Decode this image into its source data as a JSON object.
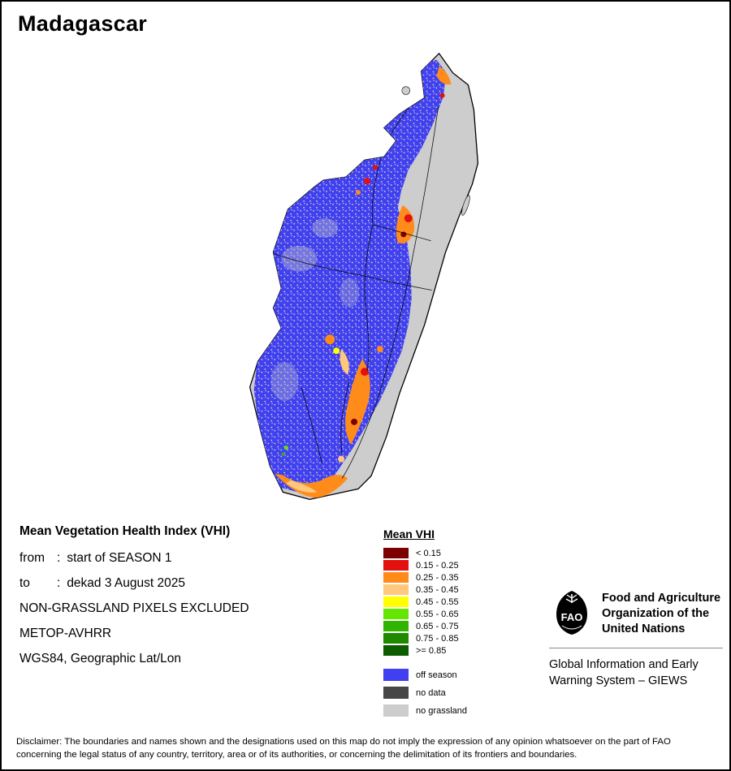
{
  "title": "Madagascar",
  "info": {
    "heading": "Mean Vegetation Health Index (VHI)",
    "rows": [
      {
        "label": "from",
        "colon": ":",
        "value": "start of SEASON 1"
      },
      {
        "label": "to",
        "colon": ":",
        "value": "dekad 3 August 2025"
      }
    ],
    "lines": [
      "NON-GRASSLAND PIXELS EXCLUDED",
      "METOP-AVHRR",
      "WGS84, Geographic Lat/Lon"
    ]
  },
  "legend": {
    "title": "Mean VHI",
    "classes": [
      {
        "key": "c_lt_015",
        "label": "< 0.15",
        "color": "#7d0000"
      },
      {
        "key": "c_015_025",
        "label": "0.15 - 0.25",
        "color": "#e31010"
      },
      {
        "key": "c_025_035",
        "label": "0.25 - 0.35",
        "color": "#ff8c1a"
      },
      {
        "key": "c_035_045",
        "label": "0.35 - 0.45",
        "color": "#ffc87d"
      },
      {
        "key": "c_045_055",
        "label": "0.45 - 0.55",
        "color": "#ffff00"
      },
      {
        "key": "c_055_065",
        "label": "0.55 - 0.65",
        "color": "#63e600"
      },
      {
        "key": "c_065_075",
        "label": "0.65 - 0.75",
        "color": "#2fb500"
      },
      {
        "key": "c_075_085",
        "label": "0.75 - 0.85",
        "color": "#1f8a00"
      },
      {
        "key": "c_ge_085",
        "label": ">= 0.85",
        "color": "#0e5c00"
      }
    ],
    "extras": [
      {
        "key": "off_season",
        "label": "off season",
        "color": "#4040f0"
      },
      {
        "key": "no_data",
        "label": "no data",
        "color": "#474747"
      },
      {
        "key": "no_grassland",
        "label": "no grassland",
        "color": "#cdcdcd"
      }
    ]
  },
  "org": {
    "logo_text": "FAO",
    "name": "Food and Agriculture Organization of the United Nations",
    "programme": "Global Information and Early Warning System – GIEWS"
  },
  "disclaimer": "Disclaimer: The boundaries and names shown and the designations used on this map do not imply the expression of any opinion whatsoever on the part of FAO concerning the legal status of any country, territory, area or of its authorities, or concerning the delimitation of its frontiers and boundaries."
}
